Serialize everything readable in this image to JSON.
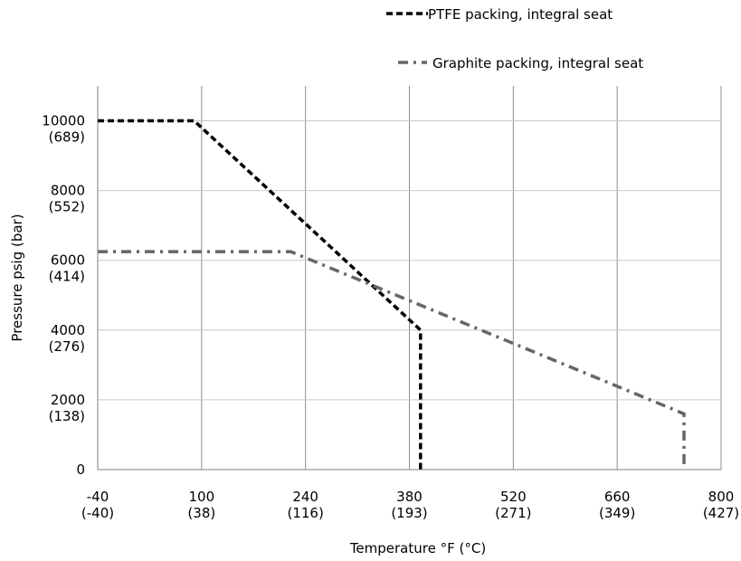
{
  "chart_data": {
    "type": "line",
    "xlabel": "Temperature °F (°C)",
    "ylabel": "Pressure psig (bar)",
    "xlim": [
      -40,
      800
    ],
    "ylim": [
      0,
      11000
    ],
    "x_ticks": [
      {
        "value": -40,
        "label": "-40",
        "sublabel": "(-40)"
      },
      {
        "value": 100,
        "label": "100",
        "sublabel": "(38)"
      },
      {
        "value": 240,
        "label": "240",
        "sublabel": "(116)"
      },
      {
        "value": 380,
        "label": "380",
        "sublabel": "(193)"
      },
      {
        "value": 520,
        "label": "520",
        "sublabel": "(271)"
      },
      {
        "value": 660,
        "label": "660",
        "sublabel": "(349)"
      },
      {
        "value": 800,
        "label": "800",
        "sublabel": "(427)"
      }
    ],
    "y_ticks": [
      {
        "value": 0,
        "label": "0",
        "sublabel": ""
      },
      {
        "value": 2000,
        "label": "2000",
        "sublabel": "(138)"
      },
      {
        "value": 4000,
        "label": "4000",
        "sublabel": "(276)"
      },
      {
        "value": 6000,
        "label": "6000",
        "sublabel": "(414)"
      },
      {
        "value": 8000,
        "label": "8000",
        "sublabel": "(552)"
      },
      {
        "value": 10000,
        "label": "10000",
        "sublabel": "(689)"
      }
    ],
    "grid": "vertical and horizontal",
    "legend_position": "top-right",
    "series": [
      {
        "name": "PTFE packing, integral seat",
        "style": "dashed",
        "color": "#000000",
        "x": [
          -40,
          90,
          395,
          395
        ],
        "y": [
          10000,
          10000,
          4000,
          0
        ]
      },
      {
        "name": "Graphite packing, integral seat",
        "style": "dash-dot",
        "color": "#666666",
        "x": [
          -40,
          220,
          750,
          750
        ],
        "y": [
          6250,
          6250,
          1600,
          0
        ]
      }
    ]
  }
}
